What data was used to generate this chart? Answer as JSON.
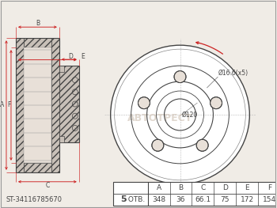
{
  "bg_color": "#f0ece6",
  "line_color": "#444444",
  "red_color": "#cc2222",
  "part_number": "ST-34116785670",
  "bolt_label_bold": "5",
  "bolt_label_normal": " ОТВ.",
  "headers": [
    "A",
    "B",
    "C",
    "D",
    "E",
    "F"
  ],
  "values": [
    "348",
    "36",
    "66.1",
    "75",
    "172",
    "154"
  ],
  "dim_label_bolt_circle": "Ø16.6(x5)",
  "dim_label_center": "Ø120",
  "watermark": "АВТОТРЕСТ"
}
